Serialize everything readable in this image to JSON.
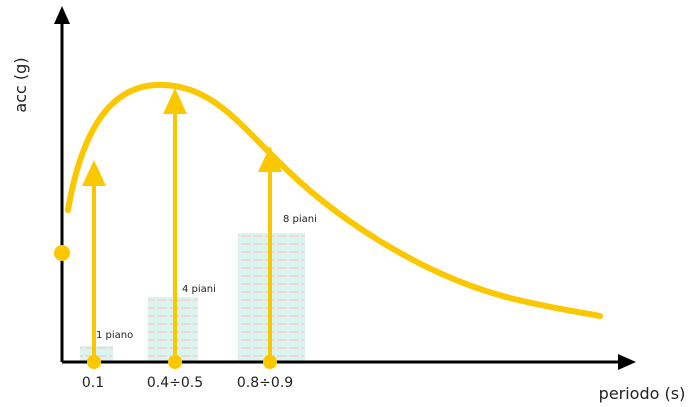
{
  "axes": {
    "y_label": "acc (g)",
    "x_label": "periodo (s)"
  },
  "periods": [
    {
      "label": "0.1",
      "building": "1 piano"
    },
    {
      "label": "0.4÷0.5",
      "building": "4 piani"
    },
    {
      "label": "0.8÷0.9",
      "building": "8 piani"
    }
  ]
}
